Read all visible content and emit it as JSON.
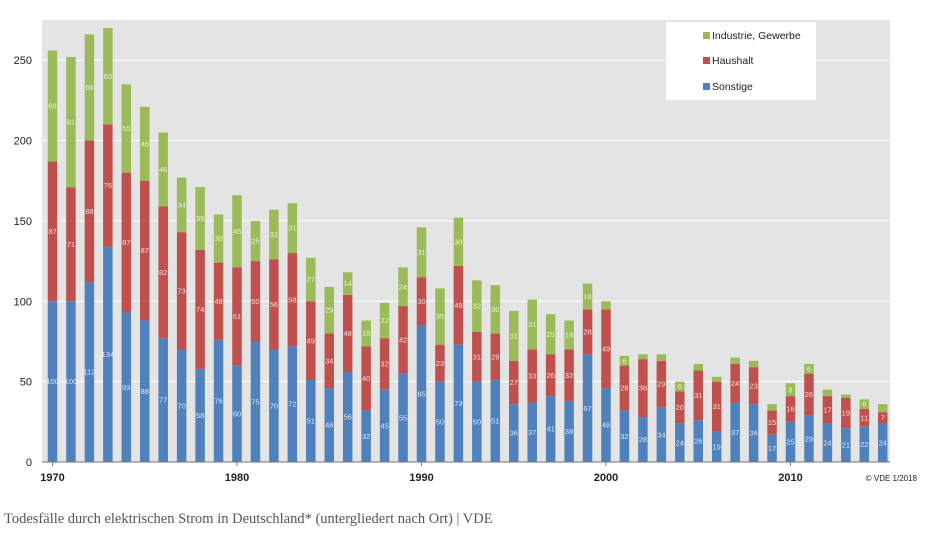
{
  "caption": "Todesfälle durch elektrischen Strom in Deutschland* (untergliedert nach Ort) | VDE",
  "copyright": "© VDE 1/2018",
  "colors": {
    "Sonstige": "#4f81bd",
    "Haushalt": "#c0504d",
    "Industrie, Gewerbe": "#9bbb59",
    "plot_bg": "#e4e4e4",
    "grid": "#ffffff"
  },
  "chart_data": {
    "type": "bar",
    "stacked": true,
    "title": "",
    "xlabel": "",
    "ylabel": "",
    "ylim": [
      0,
      275
    ],
    "yticks": [
      0,
      50,
      100,
      150,
      200,
      250
    ],
    "xtick_labels": [
      {
        "year": 1970,
        "label": "1970"
      },
      {
        "year": 1980,
        "label": "1980"
      },
      {
        "year": 1990,
        "label": "1990"
      },
      {
        "year": 2000,
        "label": "2000"
      },
      {
        "year": 2010,
        "label": "2010"
      }
    ],
    "grid": true,
    "legend_position": "top-right",
    "legend": [
      "Industrie, Gewerbe",
      "Haushalt",
      "Sonstige"
    ],
    "categories": [
      1970,
      1971,
      1972,
      1973,
      1974,
      1975,
      1976,
      1977,
      1978,
      1979,
      1980,
      1981,
      1982,
      1983,
      1984,
      1985,
      1986,
      1987,
      1988,
      1989,
      1990,
      1991,
      1992,
      1993,
      1994,
      1995,
      1996,
      1997,
      1998,
      1999,
      2000,
      2001,
      2002,
      2003,
      2004,
      2005,
      2006,
      2007,
      2008,
      2009,
      2010,
      2011,
      2012,
      2013,
      2014,
      2015
    ],
    "series": [
      {
        "name": "Sonstige",
        "values": [
          100,
          100,
          112,
          134,
          93,
          88,
          77,
          70,
          58,
          76,
          60,
          75,
          70,
          72,
          51,
          46,
          56,
          32,
          45,
          55,
          85,
          50,
          73,
          50,
          51,
          36,
          37,
          41,
          38,
          67,
          46,
          32,
          28,
          34,
          24,
          26,
          19,
          37,
          36,
          17,
          25,
          29,
          24,
          21,
          22,
          24
        ]
      },
      {
        "name": "Haushalt",
        "values": [
          87,
          71,
          88,
          76,
          87,
          87,
          82,
          73,
          74,
          48,
          61,
          50,
          56,
          58,
          49,
          34,
          48,
          40,
          32,
          42,
          30,
          23,
          49,
          31,
          29,
          27,
          33,
          26,
          32,
          28,
          49,
          28,
          36,
          29,
          20,
          31,
          31,
          24,
          23,
          15,
          16,
          26,
          17,
          19,
          11,
          7
        ]
      },
      {
        "name": "Industrie, Gewerbe",
        "values": [
          69,
          81,
          66,
          60,
          55,
          46,
          46,
          34,
          39,
          30,
          45,
          25,
          31,
          31,
          27,
          29,
          14,
          16,
          22,
          24,
          31,
          35,
          30,
          32,
          30,
          31,
          31,
          25,
          18,
          16,
          5,
          6,
          3,
          4,
          6,
          4,
          3,
          4,
          4,
          4,
          8,
          6,
          4,
          2,
          6,
          5
        ]
      }
    ]
  }
}
